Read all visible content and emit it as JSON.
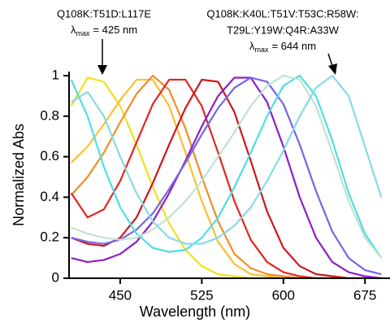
{
  "chart_data": {
    "type": "line",
    "xlabel": "Wavelength (nm)",
    "ylabel": "Normalized Abs",
    "annotations": [
      {
        "lines": [
          "Q108K:T51D:L117E"
        ],
        "symbol": "λ",
        "sub": "max",
        "value": "= 425 nm"
      },
      {
        "lines": [
          "Q108K:K40L:T51V:T53C:R58W:",
          "T29L:Y19W:Q4R:A33W"
        ],
        "symbol": "λ",
        "sub": "max",
        "value": "= 644 nm"
      }
    ],
    "xlim": [
      403,
      698
    ],
    "ylim": [
      0,
      1.02
    ],
    "xticks": [
      450,
      525,
      600,
      675
    ],
    "yticks": [
      0,
      0.2,
      0.4,
      0.6,
      0.8,
      1
    ],
    "x": [
      405,
      420,
      435,
      450,
      465,
      480,
      495,
      510,
      525,
      540,
      555,
      570,
      585,
      600,
      615,
      630,
      645,
      660,
      675,
      690
    ],
    "series": [
      {
        "color": "#f2e01a",
        "values": [
          0.85,
          0.99,
          0.97,
          0.85,
          0.66,
          0.45,
          0.27,
          0.14,
          0.06,
          0.02,
          0.01,
          0,
          0,
          0,
          0,
          0,
          0,
          0,
          0,
          0
        ]
      },
      {
        "color": "#fbbf2e",
        "values": [
          0.57,
          0.65,
          0.76,
          0.88,
          0.98,
          0.98,
          0.85,
          0.62,
          0.38,
          0.18,
          0.07,
          0.02,
          0.01,
          0,
          0,
          0,
          0,
          0,
          0,
          0
        ]
      },
      {
        "color": "#f28c28",
        "values": [
          0.41,
          0.5,
          0.62,
          0.77,
          0.91,
          1.0,
          0.93,
          0.74,
          0.5,
          0.28,
          0.12,
          0.05,
          0.02,
          0.01,
          0,
          0,
          0,
          0,
          0,
          0
        ]
      },
      {
        "color": "#e3261f",
        "values": [
          0.42,
          0.3,
          0.34,
          0.48,
          0.67,
          0.86,
          0.98,
          0.98,
          0.85,
          0.62,
          0.38,
          0.19,
          0.08,
          0.03,
          0.01,
          0,
          0,
          0,
          0,
          0
        ]
      },
      {
        "color": "#d0151a",
        "values": [
          0.2,
          0.17,
          0.16,
          0.2,
          0.3,
          0.47,
          0.66,
          0.84,
          0.98,
          0.97,
          0.82,
          0.58,
          0.33,
          0.15,
          0.06,
          0.02,
          0.01,
          0,
          0,
          0
        ]
      },
      {
        "color": "#8e1fc8",
        "values": [
          0.1,
          0.08,
          0.09,
          0.12,
          0.18,
          0.28,
          0.42,
          0.58,
          0.75,
          0.9,
          0.99,
          0.99,
          0.87,
          0.65,
          0.4,
          0.2,
          0.08,
          0.03,
          0.01,
          0
        ]
      },
      {
        "color": "#7466e8",
        "values": [
          0.2,
          0.18,
          0.17,
          0.19,
          0.24,
          0.32,
          0.44,
          0.57,
          0.71,
          0.84,
          0.94,
          0.99,
          0.97,
          0.86,
          0.66,
          0.43,
          0.23,
          0.1,
          0.04,
          0.02
        ]
      },
      {
        "color": "#4fdde6",
        "values": [
          0.98,
          0.8,
          0.55,
          0.35,
          0.22,
          0.15,
          0.13,
          0.14,
          0.2,
          0.3,
          0.45,
          0.62,
          0.8,
          0.95,
          1.0,
          0.9,
          0.68,
          0.42,
          0.22,
          0.1
        ]
      },
      {
        "color": "#bfe3cf",
        "values": [
          0.25,
          0.22,
          0.2,
          0.19,
          0.2,
          0.24,
          0.3,
          0.38,
          0.48,
          0.6,
          0.72,
          0.85,
          0.95,
          1.0,
          0.98,
          0.85,
          0.62,
          0.38,
          0.2,
          0.1
        ]
      },
      {
        "color": "#86dbe6",
        "values": [
          0.87,
          0.92,
          0.8,
          0.6,
          0.42,
          0.28,
          0.2,
          0.17,
          0.17,
          0.2,
          0.26,
          0.35,
          0.48,
          0.63,
          0.8,
          0.94,
          1.0,
          0.9,
          0.65,
          0.4
        ]
      }
    ]
  }
}
